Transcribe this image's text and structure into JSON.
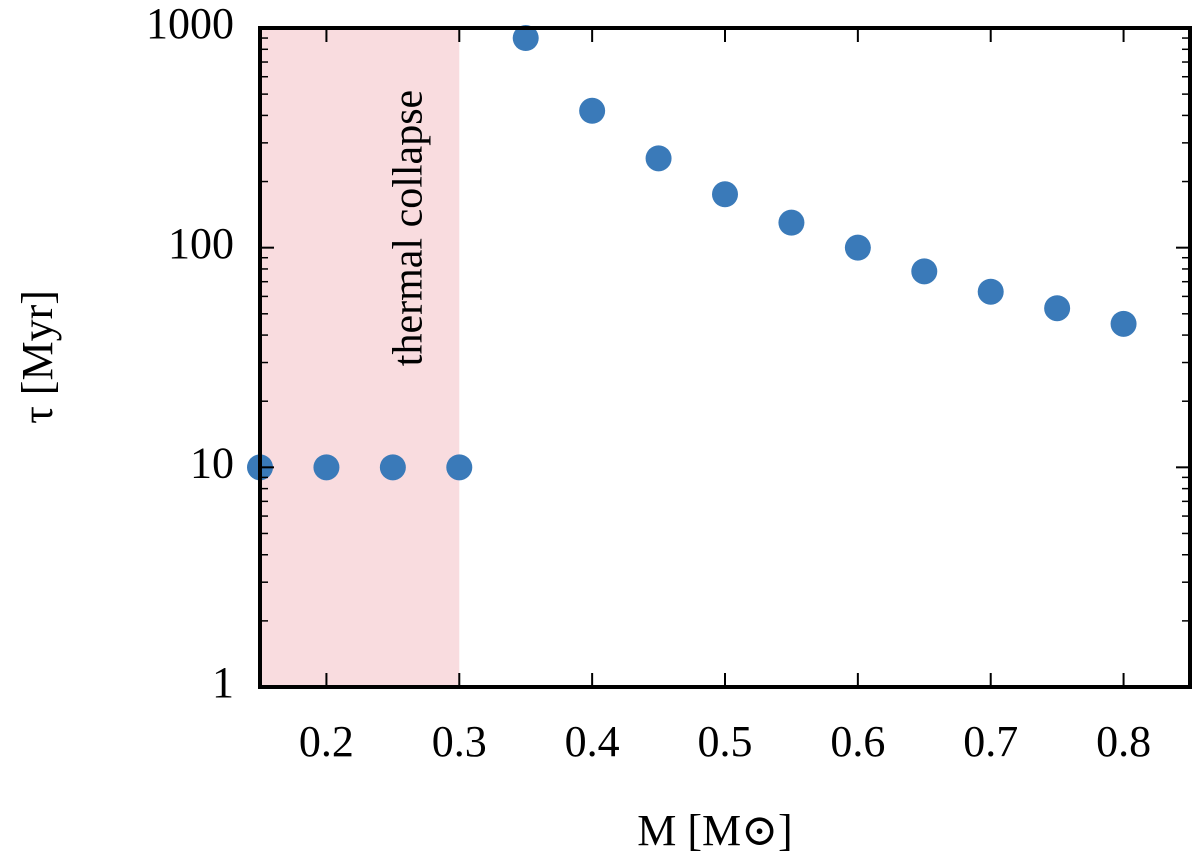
{
  "chart_data": {
    "type": "scatter",
    "xlabel": "M [M⊙]",
    "ylabel": "τ [Myr]",
    "xlim": [
      0.15,
      0.85
    ],
    "ylim": [
      1,
      1000
    ],
    "y_scale": "log",
    "x_ticks": [
      0.2,
      0.3,
      0.4,
      0.5,
      0.6,
      0.7,
      0.8
    ],
    "x_tick_labels": [
      "0.2",
      "0.3",
      "0.4",
      "0.5",
      "0.6",
      "0.7",
      "0.8"
    ],
    "y_ticks": [
      1,
      10,
      100,
      1000
    ],
    "y_tick_labels": [
      "1",
      "10",
      "100",
      "1000"
    ],
    "grid": false,
    "region": {
      "x_range": [
        0.15,
        0.3
      ],
      "label": "thermal collapse",
      "color": "#f9dcdf"
    },
    "marker_color": "#3a7ab9",
    "x": [
      0.15,
      0.2,
      0.25,
      0.3,
      0.35,
      0.4,
      0.45,
      0.5,
      0.55,
      0.6,
      0.65,
      0.7,
      0.75,
      0.8
    ],
    "y": [
      10,
      10,
      10,
      10,
      900,
      420,
      255,
      175,
      130,
      100,
      78,
      63,
      53,
      45
    ]
  }
}
